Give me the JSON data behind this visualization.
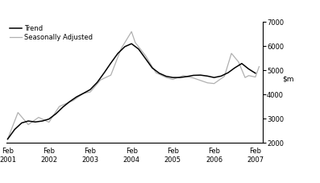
{
  "ylim": [
    2000,
    7000
  ],
  "yticks": [
    2000,
    3000,
    4000,
    5000,
    6000,
    7000
  ],
  "xlim": [
    2001.05,
    2007.25
  ],
  "xtick_positions": [
    2001.08,
    2002.08,
    2003.08,
    2004.08,
    2005.08,
    2006.08,
    2007.08
  ],
  "xtick_labels": [
    "Feb\n2001",
    "Feb\n2002",
    "Feb\n2003",
    "Feb\n2004",
    "Feb\n2005",
    "Feb\n2006",
    "Feb\n2007"
  ],
  "legend_entries": [
    "Trend",
    "Seasonally Adjusted"
  ],
  "trend_color": "#000000",
  "seasonal_color": "#b0b0b0",
  "background_color": "#ffffff",
  "trend_x": [
    2001.08,
    2001.25,
    2001.42,
    2001.58,
    2001.75,
    2001.92,
    2002.08,
    2002.25,
    2002.42,
    2002.58,
    2002.75,
    2002.92,
    2003.08,
    2003.25,
    2003.42,
    2003.58,
    2003.75,
    2003.92,
    2004.08,
    2004.25,
    2004.42,
    2004.58,
    2004.75,
    2004.92,
    2005.08,
    2005.25,
    2005.42,
    2005.58,
    2005.75,
    2005.92,
    2006.08,
    2006.25,
    2006.42,
    2006.58,
    2006.75,
    2006.92,
    2007.08
  ],
  "trend_y": [
    2150,
    2550,
    2820,
    2900,
    2860,
    2900,
    2980,
    3200,
    3480,
    3700,
    3900,
    4050,
    4200,
    4500,
    4900,
    5300,
    5700,
    5980,
    6100,
    5880,
    5480,
    5100,
    4880,
    4750,
    4700,
    4700,
    4740,
    4790,
    4800,
    4760,
    4700,
    4760,
    4900,
    5100,
    5280,
    5050,
    4880
  ],
  "seasonal_x": [
    2001.08,
    2001.33,
    2001.58,
    2001.83,
    2002.08,
    2002.33,
    2002.67,
    2002.92,
    2003.08,
    2003.33,
    2003.58,
    2003.83,
    2004.08,
    2004.17,
    2004.42,
    2004.67,
    2004.92,
    2005.08,
    2005.33,
    2005.58,
    2005.75,
    2005.92,
    2006.08,
    2006.33,
    2006.5,
    2006.67,
    2006.83,
    2006.92,
    2007.08,
    2007.17
  ],
  "seasonal_y": [
    2150,
    3250,
    2750,
    3050,
    2850,
    3500,
    3750,
    4050,
    4100,
    4600,
    4800,
    5900,
    6600,
    6150,
    5600,
    4900,
    4700,
    4620,
    4780,
    4680,
    4580,
    4480,
    4450,
    4750,
    5700,
    5350,
    4700,
    4780,
    4720,
    5150
  ]
}
